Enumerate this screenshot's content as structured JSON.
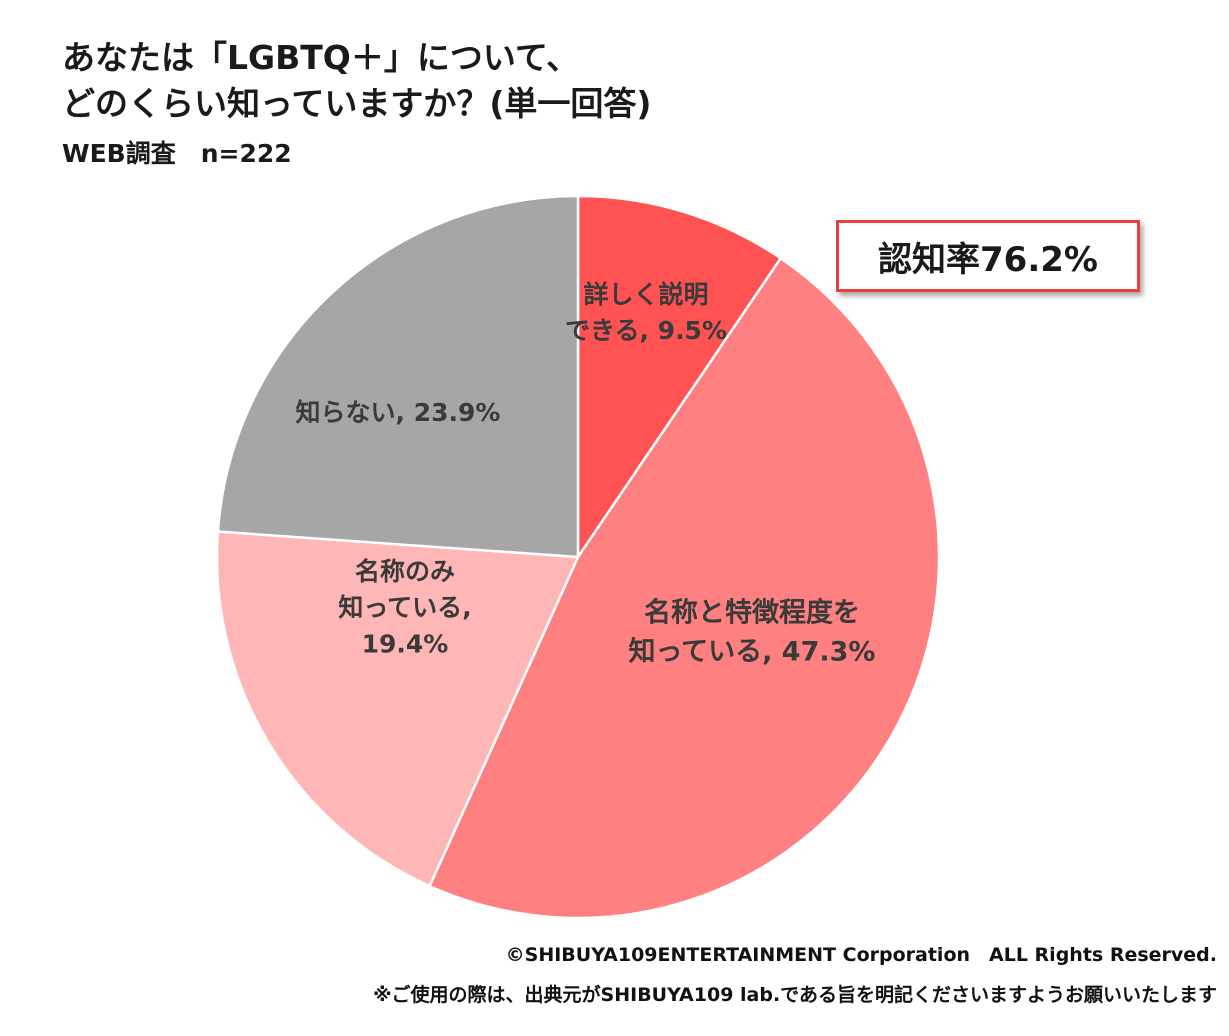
{
  "title_line1": "あなたは「LGBTQ＋」について、",
  "title_line2": "どのくらい知っていますか？(単一回答)",
  "subtitle": "WEB調査　n=222",
  "badge": "認知率76.2%",
  "footer_line1": "©SHIBUYA109ENTERTAINMENT Corporation　ALL Rights Reserved.",
  "footer_line2": "※ご使用の際は、出典元がSHIBUYA109 lab.である旨を明記くださいますようお願いいたします",
  "chart_data": {
    "type": "pie",
    "slices": [
      {
        "label_lines": [
          "詳しく説明",
          "できる, 9.5%"
        ],
        "value": 9.5,
        "color": "#ff5252"
      },
      {
        "label_lines": [
          "名称と特徴程度を",
          "知っている, 47.3%"
        ],
        "value": 47.3,
        "color": "#ff8080"
      },
      {
        "label_lines": [
          "名称のみ",
          "知っている,",
          "19.4%"
        ],
        "value": 19.4,
        "color": "#ffb6b6"
      },
      {
        "label_lines": [
          "知らない, 23.9%"
        ],
        "value": 23.9,
        "color": "#a6a6a6"
      }
    ]
  }
}
